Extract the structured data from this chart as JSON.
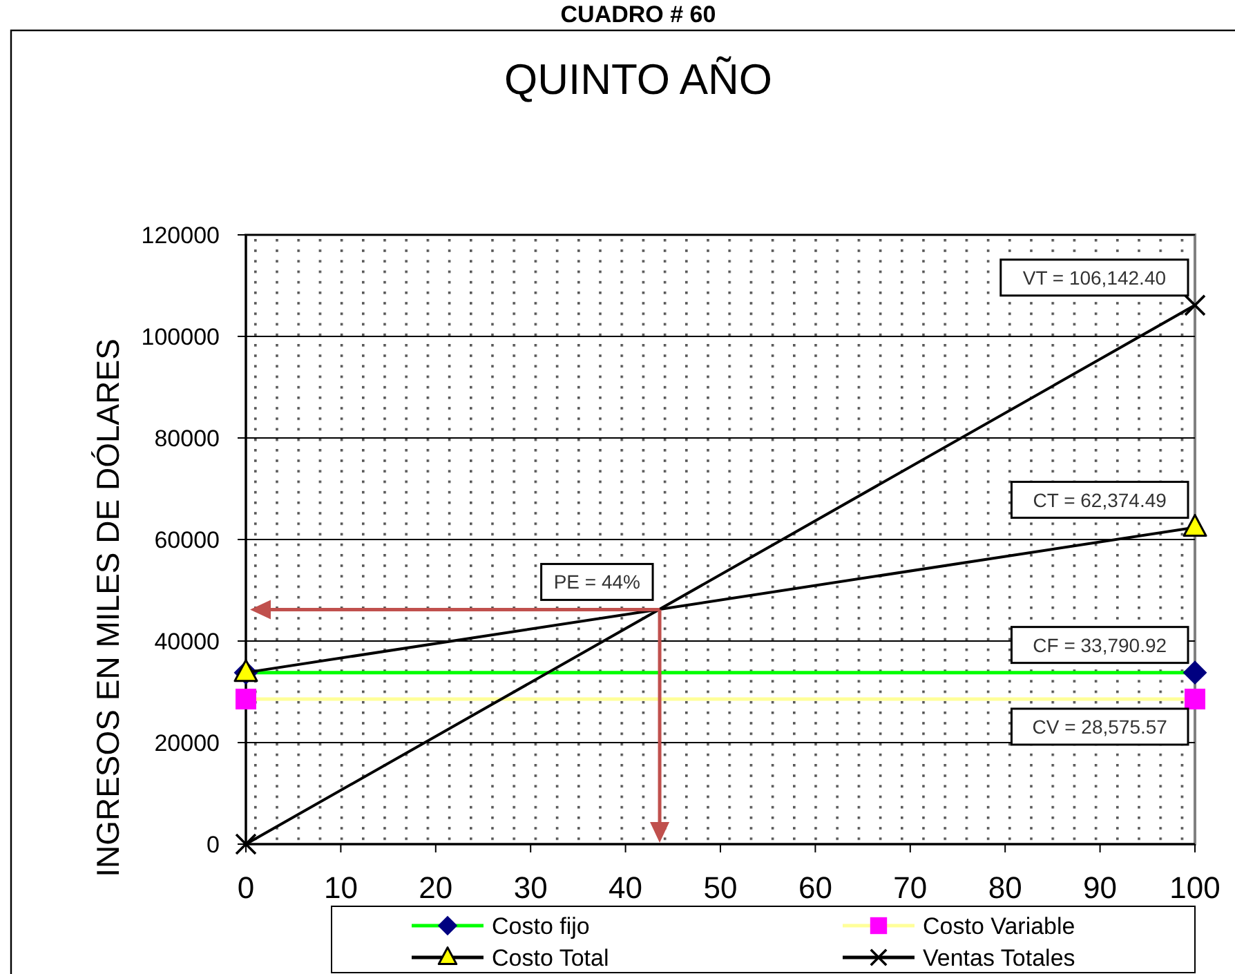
{
  "chart_data": {
    "type": "line",
    "title": "QUINTO AÑO",
    "ylabel": "INGRESOS EN MILES DE DÓLARES",
    "annotations": [
      "CUADRO # 60",
      {
        "text": "PE = 44%",
        "x": 43.6,
        "y": 46200
      }
    ],
    "x": [
      0,
      100
    ],
    "xlim": [
      0,
      100
    ],
    "xticks": [
      0,
      10,
      20,
      30,
      40,
      50,
      60,
      70,
      80,
      90,
      100
    ],
    "ylim": [
      0,
      120000
    ],
    "yticks": [
      0,
      20000,
      40000,
      60000,
      80000,
      100000,
      120000
    ],
    "grid": "y",
    "legend": "bottom",
    "series": [
      {
        "name": "Costo fijo",
        "color": "#00ff00",
        "colors": [
          "#000080",
          "#000080"
        ],
        "marker": "diamond",
        "values": [
          33790.92,
          33790.92
        ],
        "value_labels": [
          null,
          "CF = 33,790.92"
        ]
      },
      {
        "name": "Costo Variable",
        "color": "#ffff99",
        "colors": [
          "#ff00ff",
          "#ff00ff"
        ],
        "marker": "square",
        "values": [
          28575.57,
          28575.57
        ],
        "value_labels": [
          null,
          "CV = 28,575.57"
        ]
      },
      {
        "name": "Costo Total",
        "color": "#000000",
        "colors": [
          "#ffff00",
          "#ffff00"
        ],
        "marker": "triangle",
        "values": [
          33790.92,
          62374.49
        ],
        "value_labels": [
          null,
          "CT = 62,374.49"
        ]
      },
      {
        "name": "Ventas Totales",
        "color": "#000000",
        "marker": "cross",
        "values": [
          0,
          106142.4
        ],
        "value_labels": [
          null,
          "VT = 106,142.40"
        ]
      }
    ]
  }
}
